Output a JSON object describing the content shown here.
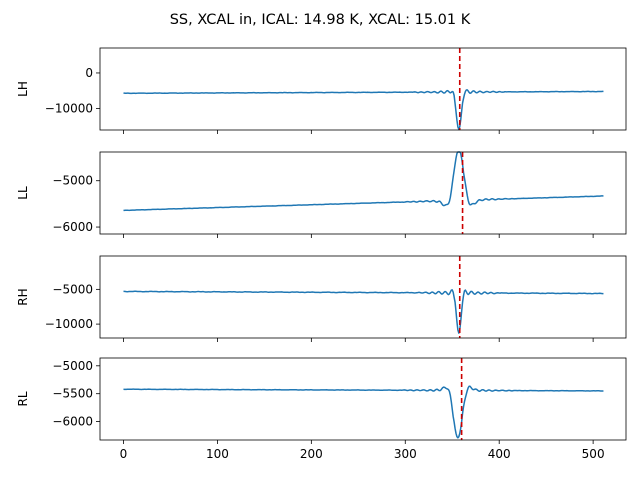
{
  "figure": {
    "title": "SS, XCAL in, ICAL: 14.98 K, XCAL: 15.01 K"
  },
  "chart_data": [
    {
      "type": "line",
      "ylabel": "LH",
      "xlim": [
        -25,
        535
      ],
      "ylim": [
        -16000,
        7000
      ],
      "yticks": [
        0,
        -10000
      ],
      "yticklabels": [
        "0",
        "−10000"
      ],
      "xticks": [
        0,
        100,
        200,
        300,
        400,
        500
      ],
      "xticklabels": [],
      "marker_x": 358,
      "color": "#1f77b4",
      "marker_color": "#cc0000",
      "baseline": {
        "start": -5700,
        "end": -5200
      },
      "burst": {
        "center": 357,
        "amp": -10500,
        "freq": 0.24,
        "decay": 3.5,
        "ripple_amp": 600,
        "ripple_span": 50
      }
    },
    {
      "type": "line",
      "ylabel": "LL",
      "xlim": [
        -25,
        535
      ],
      "ylim": [
        -6150,
        -4380
      ],
      "yticks": [
        -5000,
        -6000
      ],
      "yticklabels": [
        "−5000",
        "−6000"
      ],
      "xticks": [
        0,
        100,
        200,
        300,
        400,
        500
      ],
      "xticklabels": [],
      "marker_x": 361,
      "color": "#1f77b4",
      "marker_color": "#cc0000",
      "baseline": {
        "start": -5640,
        "end": -5330
      },
      "burst": {
        "center": 357,
        "amp": 1100,
        "freq": 0.155,
        "decay": 7.5,
        "ripple_amp": 40,
        "ripple_span": 60
      }
    },
    {
      "type": "line",
      "ylabel": "RH",
      "xlim": [
        -25,
        535
      ],
      "ylim": [
        -12000,
        -200
      ],
      "yticks": [
        -5000,
        -10000
      ],
      "yticklabels": [
        "−5000",
        "−10000"
      ],
      "xticks": [
        0,
        100,
        200,
        300,
        400,
        500
      ],
      "xticklabels": [],
      "marker_x": 358,
      "color": "#1f77b4",
      "marker_color": "#cc0000",
      "baseline": {
        "start": -5300,
        "end": -5600
      },
      "burst": {
        "center": 357,
        "amp": -5800,
        "freq": 0.26,
        "decay": 3.2,
        "ripple_amp": 450,
        "ripple_span": 45
      }
    },
    {
      "type": "line",
      "ylabel": "RL",
      "xlim": [
        -25,
        535
      ],
      "ylim": [
        -6330,
        -4860
      ],
      "yticks": [
        -5000,
        -5500,
        -6000
      ],
      "yticklabels": [
        "−5000",
        "−5500",
        "−6000"
      ],
      "xticks": [
        0,
        100,
        200,
        300,
        400,
        500
      ],
      "xticklabels": [
        "0",
        "100",
        "200",
        "300",
        "400",
        "500"
      ],
      "marker_x": 360,
      "color": "#1f77b4",
      "marker_color": "#cc0000",
      "baseline": {
        "start": -5420,
        "end": -5450
      },
      "burst": {
        "center": 356,
        "amp": -850,
        "freq": 0.16,
        "decay": 6.5,
        "ripple_amp": 35,
        "ripple_span": 60
      }
    }
  ]
}
